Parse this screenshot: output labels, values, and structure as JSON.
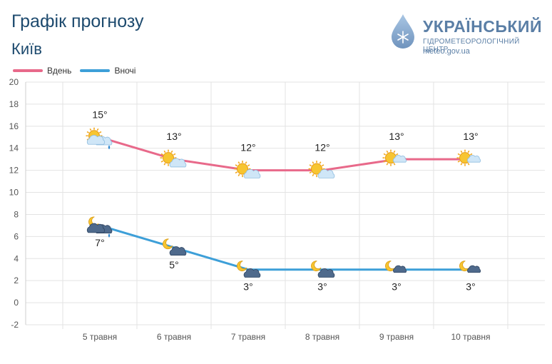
{
  "header": {
    "title": "Графік прогнозу",
    "city": "Київ"
  },
  "logo": {
    "name": "УКРАЇНСЬКИЙ",
    "subtitle": "ГІДРОМЕТЕОРОЛОГІЧНИЙ ЦЕНТР",
    "url": "meteo.gov.ua"
  },
  "legend": {
    "day_label": "Вдень",
    "night_label": "Вночі"
  },
  "colors": {
    "day": "#e8698a",
    "night": "#3d9fd8",
    "grid": "#e3e3e3",
    "brand": "#5b7fa6"
  },
  "chart_data": {
    "type": "line",
    "categories": [
      "5 травня",
      "6 травня",
      "7 травня",
      "8 травня",
      "9 травня",
      "10 травня"
    ],
    "series": [
      {
        "name": "Вдень",
        "values": [
          15,
          13,
          12,
          12,
          13,
          13
        ],
        "labels": [
          "15°",
          "13°",
          "12°",
          "12°",
          "13°",
          "13°"
        ],
        "icons": [
          "sun-cloud-rain-icon",
          "sun-cloud-icon",
          "sun-cloud-icon",
          "sun-cloud-icon",
          "sun-small-cloud-icon",
          "sun-small-cloud-icon"
        ]
      },
      {
        "name": "Вночі",
        "values": [
          7,
          5,
          3,
          3,
          3,
          3
        ],
        "labels": [
          "7°",
          "5°",
          "3°",
          "3°",
          "3°",
          "3°"
        ],
        "icons": [
          "moon-cloud-rain-icon",
          "moon-cloud-icon",
          "moon-cloud-icon",
          "moon-cloud-icon",
          "moon-small-cloud-icon",
          "moon-small-cloud-icon"
        ]
      }
    ],
    "yticks": [
      20,
      18,
      16,
      14,
      12,
      10,
      8,
      6,
      4,
      2,
      0,
      -2
    ],
    "ylim": [
      -2,
      20
    ],
    "grid": true,
    "legend_position": "top-left"
  }
}
